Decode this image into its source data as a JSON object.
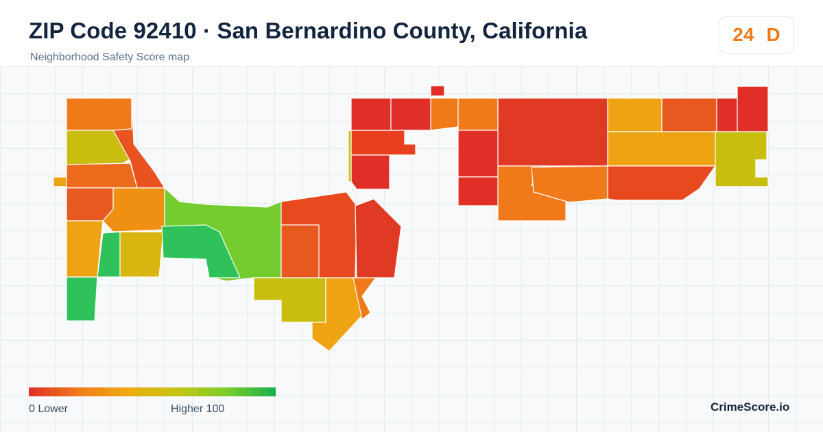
{
  "header": {
    "title": "ZIP Code 92410 · San Bernardino County, California",
    "subtitle": "Neighborhood Safety Score map"
  },
  "score": {
    "value": "24",
    "grade": "D",
    "color": "#f07a1a"
  },
  "legend": {
    "low_label": "0  Lower",
    "high_label": "Higher  100",
    "gradient": [
      "#e02f26",
      "#f07a1a",
      "#eeaa10",
      "#c4c513",
      "#7acc2c",
      "#19b04e"
    ],
    "range": [
      0,
      100
    ]
  },
  "brand": "CrimeScore.io",
  "map": {
    "color_scale": "safety score (0 lower, 100 higher)",
    "regions_shown": 45
  }
}
